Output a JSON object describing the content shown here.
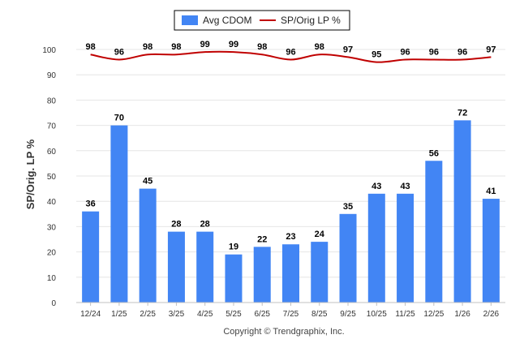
{
  "chart_data": {
    "type": "bar",
    "categories": [
      "12/24",
      "1/25",
      "2/25",
      "3/25",
      "4/25",
      "5/25",
      "6/25",
      "7/25",
      "8/25",
      "9/25",
      "10/25",
      "11/25",
      "12/25",
      "1/26",
      "2/26"
    ],
    "series": [
      {
        "name": "Avg CDOM",
        "kind": "bar",
        "color": "#4285f4",
        "values": [
          36,
          70,
          45,
          28,
          28,
          19,
          22,
          23,
          24,
          35,
          43,
          43,
          56,
          72,
          41
        ]
      },
      {
        "name": "SP/Orig LP %",
        "kind": "line",
        "color": "#c00000",
        "values": [
          98,
          96,
          98,
          98,
          99,
          99,
          98,
          96,
          98,
          97,
          95,
          96,
          96,
          96,
          97
        ]
      }
    ],
    "ylabel": "SP/Orig. LP %",
    "xlabel": "",
    "ylim": [
      0,
      100
    ],
    "yticks": [
      0,
      10,
      20,
      30,
      40,
      50,
      60,
      70,
      80,
      90,
      100
    ],
    "grid": true,
    "legend_position": "top-center"
  },
  "credit": "Copyright © Trendgraphix, Inc."
}
